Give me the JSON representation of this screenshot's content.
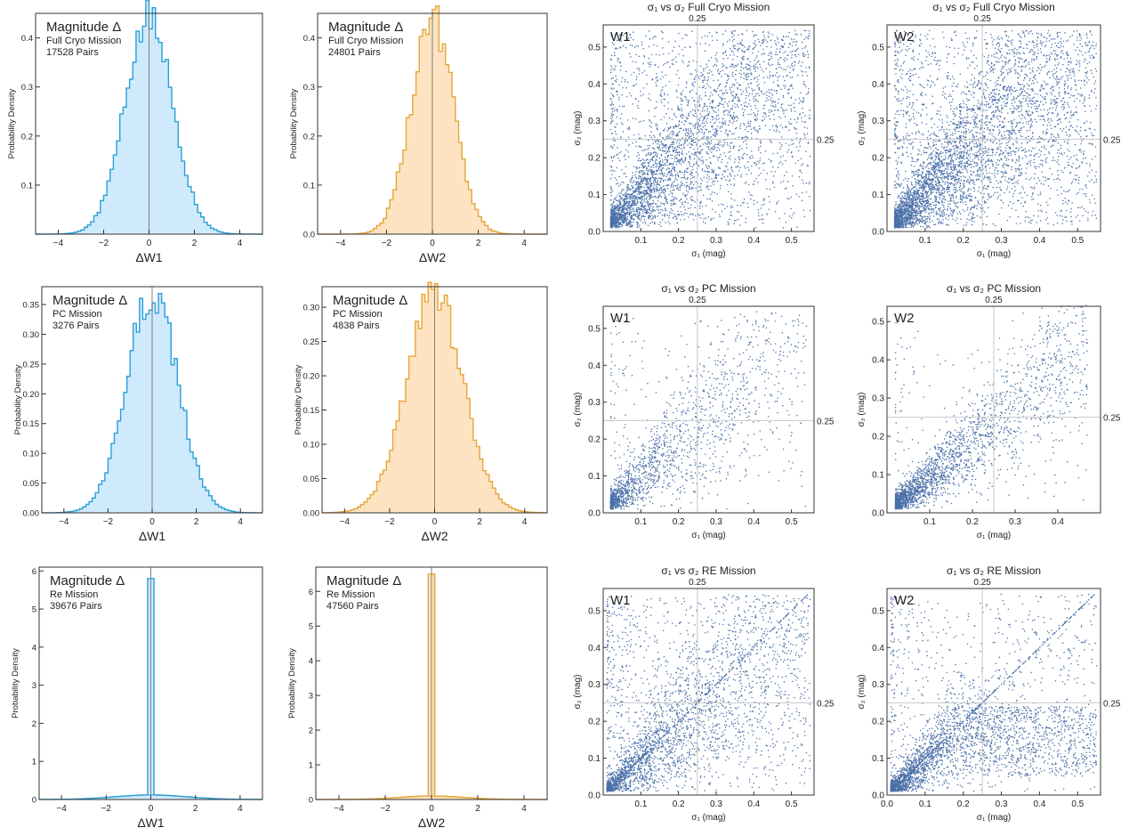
{
  "figure": {
    "title": ""
  },
  "chart_data": [
    {
      "id": "h1",
      "type": "histogram",
      "xlabel": "ΔW1",
      "ylabel": "Probability Density",
      "panel_title": "Magnitude Δ",
      "mission": "Full Cryo Mission",
      "pairs": "17528 Pairs",
      "xlim": [
        -5,
        5
      ],
      "ylim": [
        0,
        0.45
      ],
      "xticks": [
        -4,
        -2,
        0,
        2,
        4
      ],
      "yticks": [
        0.1,
        0.2,
        0.3,
        0.4
      ],
      "sigma": 1.05,
      "peak": 0.44,
      "fill": "#cfeafc",
      "stroke": "#2a9fd6"
    },
    {
      "id": "h2",
      "type": "histogram",
      "xlabel": "ΔW2",
      "ylabel": "Probability Density",
      "panel_title": "Magnitude Δ",
      "mission": "Full Cryo Mission",
      "pairs": "24801 Pairs",
      "xlim": [
        -5,
        5
      ],
      "ylim": [
        0,
        0.45
      ],
      "xticks": [
        -4,
        -2,
        0,
        2,
        4
      ],
      "yticks": [
        0.0,
        0.1,
        0.2,
        0.3,
        0.4
      ],
      "sigma": 0.92,
      "peak": 0.44,
      "fill": "#fde3c1",
      "stroke": "#e6a63a"
    },
    {
      "id": "h3",
      "type": "histogram",
      "xlabel": "ΔW1",
      "ylabel": "Probability Density",
      "panel_title": "Magnitude Δ",
      "mission": "PC Mission",
      "pairs": "3276 Pairs",
      "xlim": [
        -5,
        5
      ],
      "ylim": [
        0,
        0.38
      ],
      "xticks": [
        -4,
        -2,
        0,
        2,
        4
      ],
      "yticks": [
        0.0,
        0.05,
        0.1,
        0.15,
        0.2,
        0.25,
        0.3,
        0.35
      ],
      "sigma": 1.15,
      "peak": 0.37,
      "fill": "#cfeafc",
      "stroke": "#2a9fd6"
    },
    {
      "id": "h4",
      "type": "histogram",
      "xlabel": "ΔW2",
      "ylabel": "Probability Density",
      "panel_title": "Magnitude Δ",
      "mission": "PC Mission",
      "pairs": "4838 Pairs",
      "xlim": [
        -5,
        5
      ],
      "ylim": [
        0,
        0.33
      ],
      "xticks": [
        -4,
        -2,
        0,
        2,
        4
      ],
      "yticks": [
        0.0,
        0.05,
        0.1,
        0.15,
        0.2,
        0.25,
        0.3
      ],
      "sigma": 1.25,
      "peak": 0.32,
      "fill": "#fde3c1",
      "stroke": "#e6a63a"
    },
    {
      "id": "h5",
      "type": "histogram",
      "xlabel": "ΔW1",
      "ylabel": "Probability Density",
      "panel_title": "Magnitude Δ",
      "mission": "Re Mission",
      "pairs": "39676 Pairs",
      "xlim": [
        -5,
        5
      ],
      "ylim": [
        0,
        6.1
      ],
      "xticks": [
        -4,
        -2,
        0,
        2,
        4
      ],
      "yticks": [
        0,
        1,
        2,
        3,
        4,
        5,
        6
      ],
      "spike": 5.8,
      "base_peak": 0.12,
      "sigma": 1.6,
      "fill": "#cfeafc",
      "stroke": "#2a9fd6"
    },
    {
      "id": "h6",
      "type": "histogram",
      "xlabel": "ΔW2",
      "ylabel": "Probability Density",
      "panel_title": "Magnitude Δ",
      "mission": "Re Mission",
      "pairs": "47560 Pairs",
      "xlim": [
        -5,
        5
      ],
      "ylim": [
        0,
        6.7
      ],
      "xticks": [
        -4,
        -2,
        0,
        2,
        4
      ],
      "yticks": [
        0,
        1,
        2,
        3,
        4,
        5,
        6
      ],
      "spike": 6.5,
      "base_peak": 0.1,
      "sigma": 1.4,
      "fill": "#fde3c1",
      "stroke": "#e6a63a"
    },
    {
      "id": "s1",
      "type": "scatter",
      "title": "σ₁ vs σ₂ Full Cryo Mission",
      "band": "W1",
      "ref": "0.25",
      "xlabel": "σ₁ (mag)",
      "ylabel": "σ₂ (mag)",
      "xlim": [
        0.0,
        0.56
      ],
      "ylim": [
        0.0,
        0.56
      ],
      "xticks": [
        0.1,
        0.2,
        0.3,
        0.4,
        0.5
      ],
      "yticks": [
        0.0,
        0.1,
        0.2,
        0.3,
        0.4,
        0.5
      ],
      "n_points": 4200,
      "variant": "full",
      "seed": 11
    },
    {
      "id": "s2",
      "type": "scatter",
      "title": "σ₁ vs σ₂ Full Cryo Mission",
      "band": "W2",
      "ref": "0.25",
      "xlabel": "σ₁ (mag)",
      "ylabel": "σ₂ (mag)",
      "xlim": [
        0.0,
        0.56
      ],
      "ylim": [
        0.0,
        0.56
      ],
      "xticks": [
        0.1,
        0.2,
        0.3,
        0.4,
        0.5
      ],
      "yticks": [
        0.0,
        0.1,
        0.2,
        0.3,
        0.4,
        0.5
      ],
      "n_points": 5200,
      "variant": "full2",
      "seed": 23
    },
    {
      "id": "s3",
      "type": "scatter",
      "title": "σ₁ vs σ₂ PC Mission",
      "band": "W1",
      "ref": "0.25",
      "xlabel": "σ₁ (mag)",
      "ylabel": "σ₂ (mag)",
      "xlim": [
        0.0,
        0.56
      ],
      "ylim": [
        0.0,
        0.56
      ],
      "xticks": [
        0.1,
        0.2,
        0.3,
        0.4,
        0.5
      ],
      "yticks": [
        0.0,
        0.1,
        0.2,
        0.3,
        0.4,
        0.5
      ],
      "n_points": 1900,
      "variant": "pc",
      "seed": 37
    },
    {
      "id": "s4",
      "type": "scatter",
      "title": "σ₁ vs σ₂ PC Mission",
      "band": "W2",
      "ref": "0.25",
      "xlabel": "σ₁ (mag)",
      "ylabel": "σ₂ (mag)",
      "xlim": [
        0.0,
        0.5
      ],
      "ylim": [
        0.0,
        0.54
      ],
      "xticks": [
        0.1,
        0.2,
        0.3,
        0.4
      ],
      "yticks": [
        0.0,
        0.1,
        0.2,
        0.3,
        0.4,
        0.5
      ],
      "n_points": 2600,
      "variant": "pc2",
      "seed": 41
    },
    {
      "id": "s5",
      "type": "scatter",
      "title": "σ₁ vs σ₂ RE Mission",
      "band": "W1",
      "ref": "0.25",
      "xlabel": "σ₁ (mag)",
      "ylabel": "σ₂ (mag)",
      "xlim": [
        0.0,
        0.56
      ],
      "ylim": [
        0.0,
        0.56
      ],
      "xticks": [
        0.1,
        0.2,
        0.3,
        0.4,
        0.5
      ],
      "yticks": [
        0.0,
        0.1,
        0.2,
        0.3,
        0.4,
        0.5
      ],
      "n_points": 3600,
      "variant": "re",
      "seed": 53
    },
    {
      "id": "s6",
      "type": "scatter",
      "title": "σ₁ vs σ₂ RE Mission",
      "band": "W2",
      "ref": "0.25",
      "xlabel": "σ₁ (mag)",
      "ylabel": "σ₂ (mag)",
      "xlim": [
        0.0,
        0.56
      ],
      "ylim": [
        0.0,
        0.56
      ],
      "xticks": [
        0.0,
        0.1,
        0.2,
        0.3,
        0.4,
        0.5
      ],
      "yticks": [
        0.0,
        0.1,
        0.2,
        0.3,
        0.4,
        0.5
      ],
      "n_points": 3800,
      "variant": "re2",
      "seed": 67
    }
  ],
  "colors": {
    "scatter_point": "#4a70a8",
    "ref_line": "#c8c8c8",
    "axis": "#333333",
    "zero_line": "#808080"
  }
}
